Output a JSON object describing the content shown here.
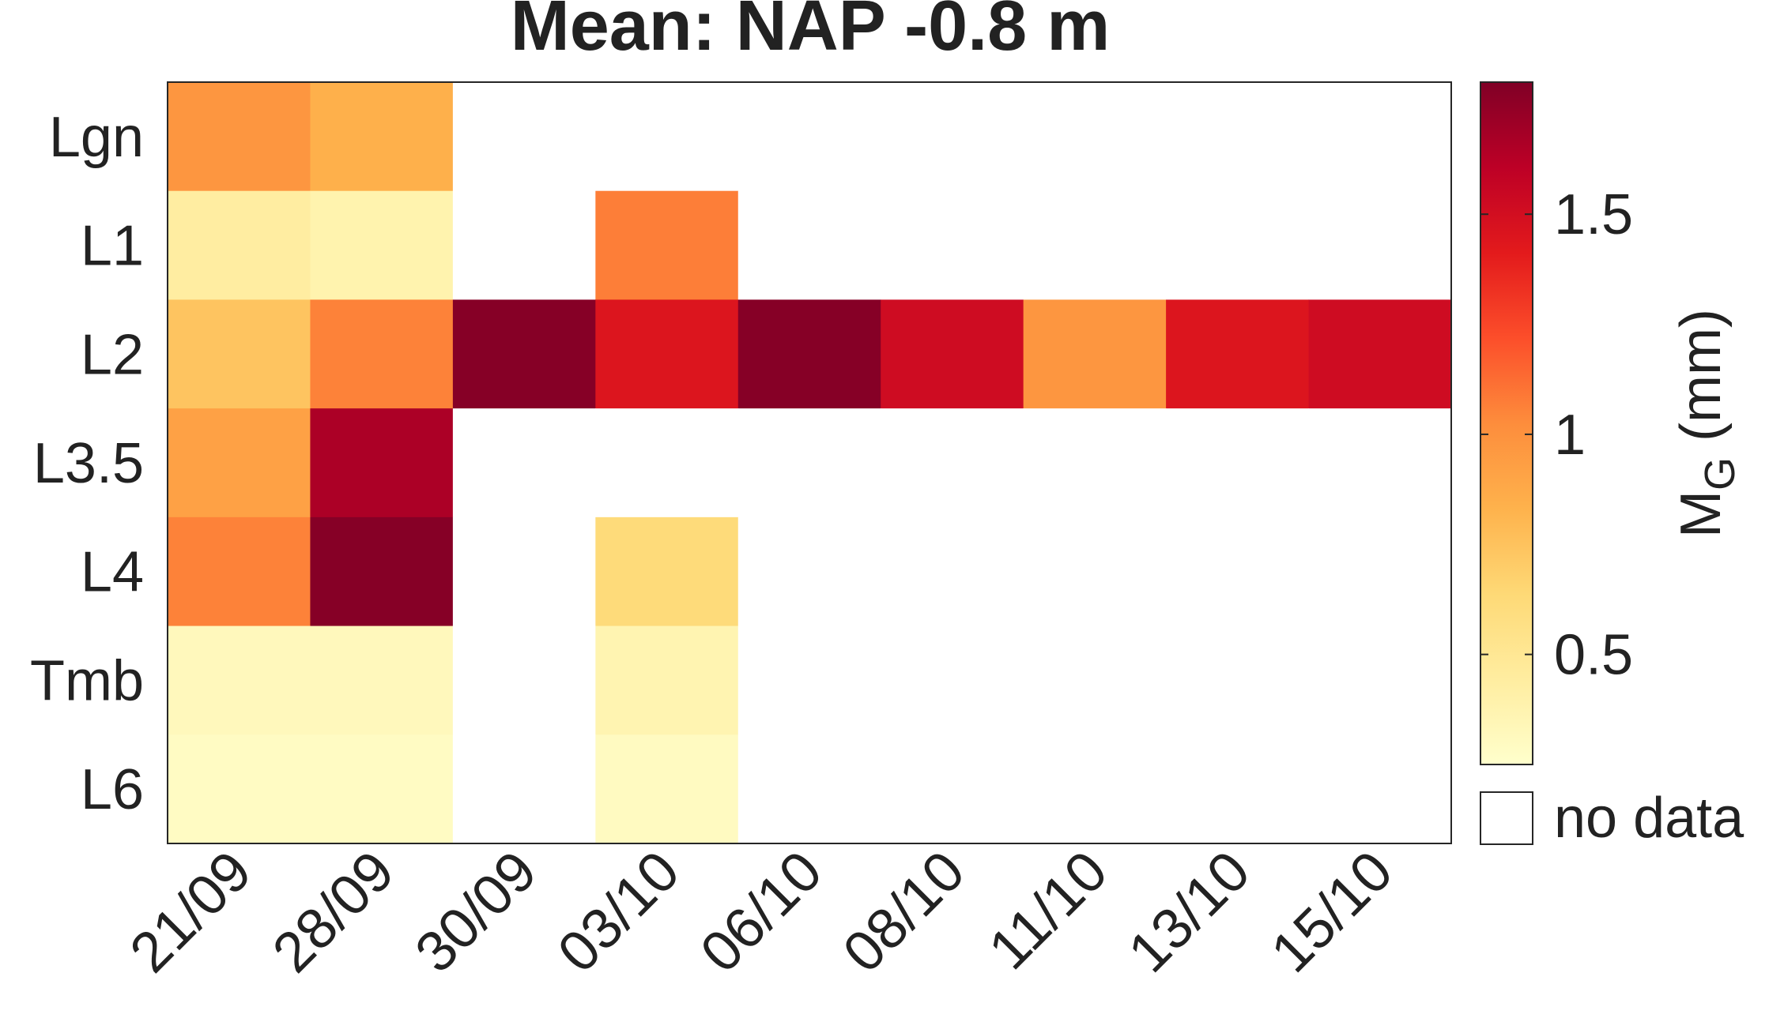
{
  "chart_data": {
    "type": "heatmap",
    "title": "Mean: NAP -0.8 m",
    "rows": [
      "Lgn",
      "L1",
      "L2",
      "L3.5",
      "L4",
      "Tmb",
      "L6"
    ],
    "columns": [
      "21/09",
      "28/09",
      "30/09",
      "03/10",
      "06/10",
      "08/10",
      "11/10",
      "13/10",
      "15/10"
    ],
    "values": [
      [
        0.98,
        0.84,
        null,
        null,
        null,
        null,
        null,
        null,
        null
      ],
      [
        0.44,
        0.38,
        null,
        1.07,
        null,
        null,
        null,
        null,
        null
      ],
      [
        0.74,
        1.06,
        1.78,
        1.45,
        1.78,
        1.52,
        0.98,
        1.45,
        1.52
      ],
      [
        0.92,
        1.66,
        null,
        null,
        null,
        null,
        null,
        null,
        null
      ],
      [
        1.06,
        1.78,
        null,
        0.62,
        null,
        null,
        null,
        null,
        null
      ],
      [
        0.32,
        0.32,
        null,
        0.37,
        null,
        null,
        null,
        null,
        null
      ],
      [
        0.29,
        0.29,
        null,
        0.3,
        null,
        null,
        null,
        null,
        null
      ]
    ],
    "colorbar": {
      "label": "M",
      "label_subscript": "G",
      "label_unit": "(mm)",
      "range": [
        0.25,
        1.8
      ],
      "ticks": [
        0.5,
        1,
        1.5
      ],
      "tick_labels": [
        "0.5",
        "1",
        "1.5"
      ],
      "colormap": [
        "#ffffcc",
        "#ffeda0",
        "#fed976",
        "#feb24c",
        "#fd8d3c",
        "#fc4e2a",
        "#e31a1c",
        "#bd0026",
        "#800026"
      ]
    },
    "no_data_label": "no data",
    "no_data_color": "#ffffff",
    "grid": false
  }
}
